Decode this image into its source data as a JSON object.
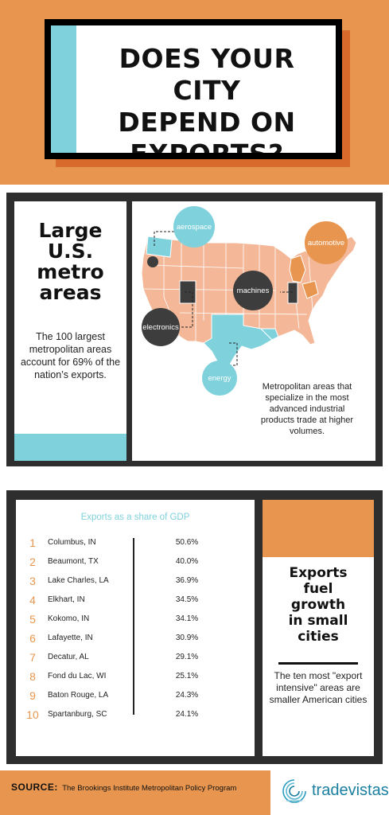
{
  "header": {
    "title_line1": "DOES YOUR CITY",
    "title_line2": "DEPEND ON",
    "title_line3": "EXPORTS?"
  },
  "metro": {
    "title_line1": "Large",
    "title_line2": "U.S.",
    "title_line3": "metro",
    "title_line4": "areas",
    "description": "The 100 largest metropolitan areas account for 69% of the nation’s exports."
  },
  "map": {
    "labels": {
      "aerospace": "aerospace",
      "automotive": "automotive",
      "machines": "machines",
      "electronics": "electronics",
      "energy": "energy"
    },
    "caption": "Metropolitan areas that specialize in the most advanced industrial products trade at higher volumes.",
    "colors": {
      "base": "#f4b899",
      "teal": "#7fd1dc",
      "orange": "#e8964f",
      "dark": "#3d3d3d"
    }
  },
  "exports": {
    "table_title": "Exports as a share of GDP",
    "rows": [
      {
        "rank": "1",
        "city": "Columbus, IN",
        "value": "50.6%"
      },
      {
        "rank": "2",
        "city": "Beaumont, TX",
        "value": "40.0%"
      },
      {
        "rank": "3",
        "city": "Lake Charles, LA",
        "value": "36.9%"
      },
      {
        "rank": "4",
        "city": "Elkhart, IN",
        "value": "34.5%"
      },
      {
        "rank": "5",
        "city": "Kokomo, IN",
        "value": "34.1%"
      },
      {
        "rank": "6",
        "city": "Lafayette, IN",
        "value": "30.9%"
      },
      {
        "rank": "7",
        "city": "Decatur, AL",
        "value": "29.1%"
      },
      {
        "rank": "8",
        "city": "Fond du Lac, WI",
        "value": "25.1%"
      },
      {
        "rank": "9",
        "city": "Baton Rouge, LA",
        "value": "24.3%"
      },
      {
        "rank": "10",
        "city": "Spartanburg, SC",
        "value": "24.1%"
      }
    ]
  },
  "growth": {
    "title_line1": "Exports",
    "title_line2": "fuel",
    "title_line3": "growth",
    "title_line4": "in small",
    "title_line5": "cities",
    "description": "The ten most \"export intensive\" areas are smaller American cities"
  },
  "footer": {
    "source_label": "SOURCE:",
    "source_text": "The Brookings Institute Metropolitan Policy Program",
    "logo_text": "tradevistas"
  }
}
